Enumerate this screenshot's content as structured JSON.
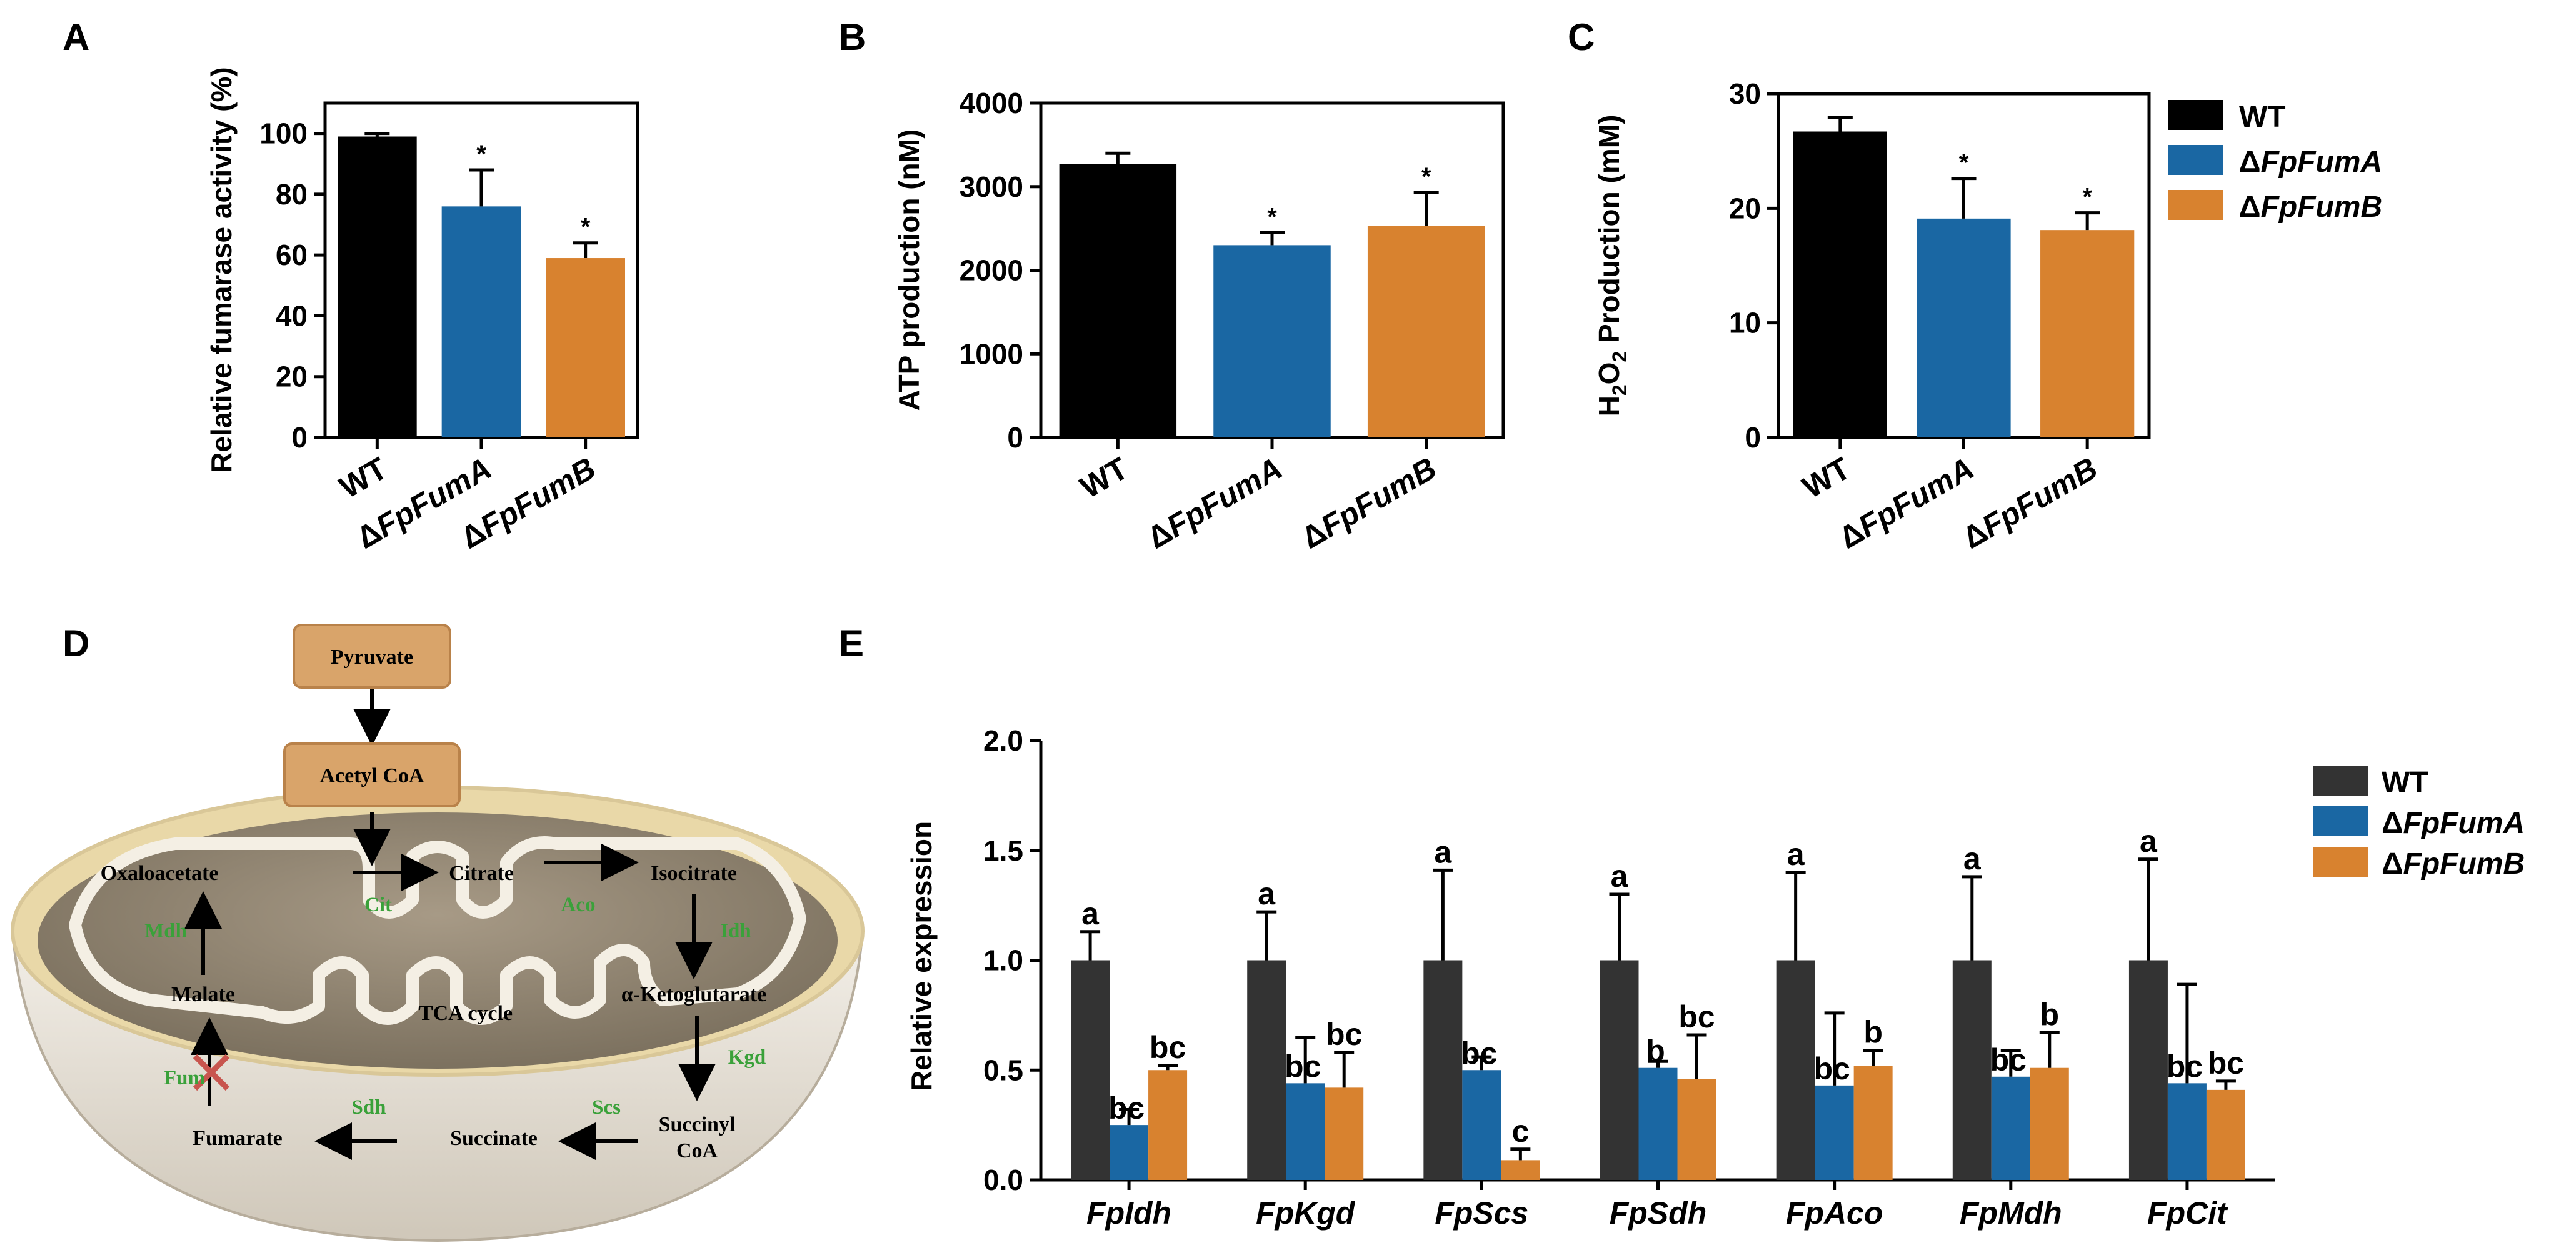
{
  "colors": {
    "wt": "#000000",
    "fumA": "#1a67a3",
    "fumB": "#d8822f",
    "wt_e": "#333333",
    "enzyme": "#3aa13a",
    "box": "#d9a46a",
    "cross": "#c8554e"
  },
  "legend": {
    "wt": "WT",
    "fumA_prefix": "Δ",
    "fumA_name": "FpFumA",
    "fumB_prefix": "Δ",
    "fumB_name": "FpFumB"
  },
  "chart_data": [
    {
      "panel": "A",
      "type": "bar",
      "ylabel": "Relative fumarase activity (%)",
      "ylim": [
        0,
        110
      ],
      "yticks": [
        "0",
        "20",
        "40",
        "60",
        "80",
        "100"
      ],
      "categories": [
        {
          "prefix": "",
          "name": "WT"
        },
        {
          "prefix": "Δ",
          "name": "FpFumA"
        },
        {
          "prefix": "Δ",
          "name": "FpFumB"
        }
      ],
      "values": [
        99,
        76,
        59
      ],
      "errors": [
        1,
        12,
        5
      ],
      "annotations": [
        "",
        "*",
        "*"
      ]
    },
    {
      "panel": "B",
      "type": "bar",
      "ylabel": "ATP production (nM)",
      "ylim": [
        0,
        4000
      ],
      "yticks": [
        "0",
        "1000",
        "2000",
        "3000",
        "4000"
      ],
      "categories": [
        {
          "prefix": "",
          "name": "WT"
        },
        {
          "prefix": "Δ",
          "name": "FpFumA"
        },
        {
          "prefix": "Δ",
          "name": "FpFumB"
        }
      ],
      "values": [
        3270,
        2300,
        2530
      ],
      "errors": [
        130,
        150,
        400
      ],
      "annotations": [
        "",
        "*",
        "*"
      ]
    },
    {
      "panel": "C",
      "type": "bar",
      "ylabel_parts": [
        "H",
        "2",
        "O",
        "2",
        " Production (mM)"
      ],
      "ylim": [
        0,
        30
      ],
      "yticks": [
        "0",
        "10",
        "20",
        "30"
      ],
      "categories": [
        {
          "prefix": "",
          "name": "WT"
        },
        {
          "prefix": "Δ",
          "name": "FpFumA"
        },
        {
          "prefix": "Δ",
          "name": "FpFumB"
        }
      ],
      "values": [
        26.7,
        19.1,
        18.1
      ],
      "errors": [
        1.2,
        3.5,
        1.5
      ],
      "annotations": [
        "",
        "*",
        "*"
      ]
    },
    {
      "panel": "E",
      "type": "bar",
      "ylabel": "Relative expression",
      "ylim": [
        0,
        2.0
      ],
      "yticks": [
        "0.0",
        "0.5",
        "1.0",
        "1.5",
        "2.0"
      ],
      "categories": [
        "FpIdh",
        "FpKgd",
        "FpScs",
        "FpSdh",
        "FpAco",
        "FpMdh",
        "FpCit"
      ],
      "series": [
        {
          "name": "WT",
          "values": [
            1.0,
            1.0,
            1.0,
            1.0,
            1.0,
            1.0,
            1.0
          ],
          "errors": [
            0.13,
            0.22,
            0.41,
            0.3,
            0.4,
            0.38,
            0.46
          ],
          "labels": [
            "a",
            "a",
            "a",
            "a",
            "a",
            "a",
            "a"
          ]
        },
        {
          "name": "ΔFpFumA",
          "values": [
            0.25,
            0.44,
            0.5,
            0.51,
            0.43,
            0.47,
            0.44
          ],
          "errors": [
            0.07,
            0.21,
            0.06,
            0.03,
            0.33,
            0.12,
            0.45
          ],
          "labels": [
            "bc",
            "bc",
            "bc",
            "b",
            "bc",
            "bc",
            "bc"
          ]
        },
        {
          "name": "ΔFpFumB",
          "values": [
            0.5,
            0.42,
            0.09,
            0.46,
            0.52,
            0.51,
            0.41
          ],
          "errors": [
            0.02,
            0.16,
            0.05,
            0.2,
            0.07,
            0.16,
            0.04
          ],
          "labels": [
            "bc",
            "bc",
            "c",
            "bc",
            "b",
            "b",
            "bc"
          ]
        }
      ]
    }
  ],
  "panelD": {
    "label": "D",
    "pyruvate": "Pyruvate",
    "acetylcoa": "Acetyl CoA",
    "oxaloacetate": "Oxaloacetate",
    "citrate": "Citrate",
    "isocitrate": "Isocitrate",
    "malate": "Malate",
    "akg": "α-Ketoglutarate",
    "tca": "TCA cycle",
    "fumarate": "Fumarate",
    "succinate": "Succinate",
    "succinyl1": "Succinyl",
    "succinyl2": "CoA",
    "cit": "Cit",
    "aco": "Aco",
    "idh": "Idh",
    "mdh": "Mdh",
    "kgd": "Kgd",
    "fum": "Fum",
    "sdh": "Sdh",
    "scs": "Scs"
  }
}
